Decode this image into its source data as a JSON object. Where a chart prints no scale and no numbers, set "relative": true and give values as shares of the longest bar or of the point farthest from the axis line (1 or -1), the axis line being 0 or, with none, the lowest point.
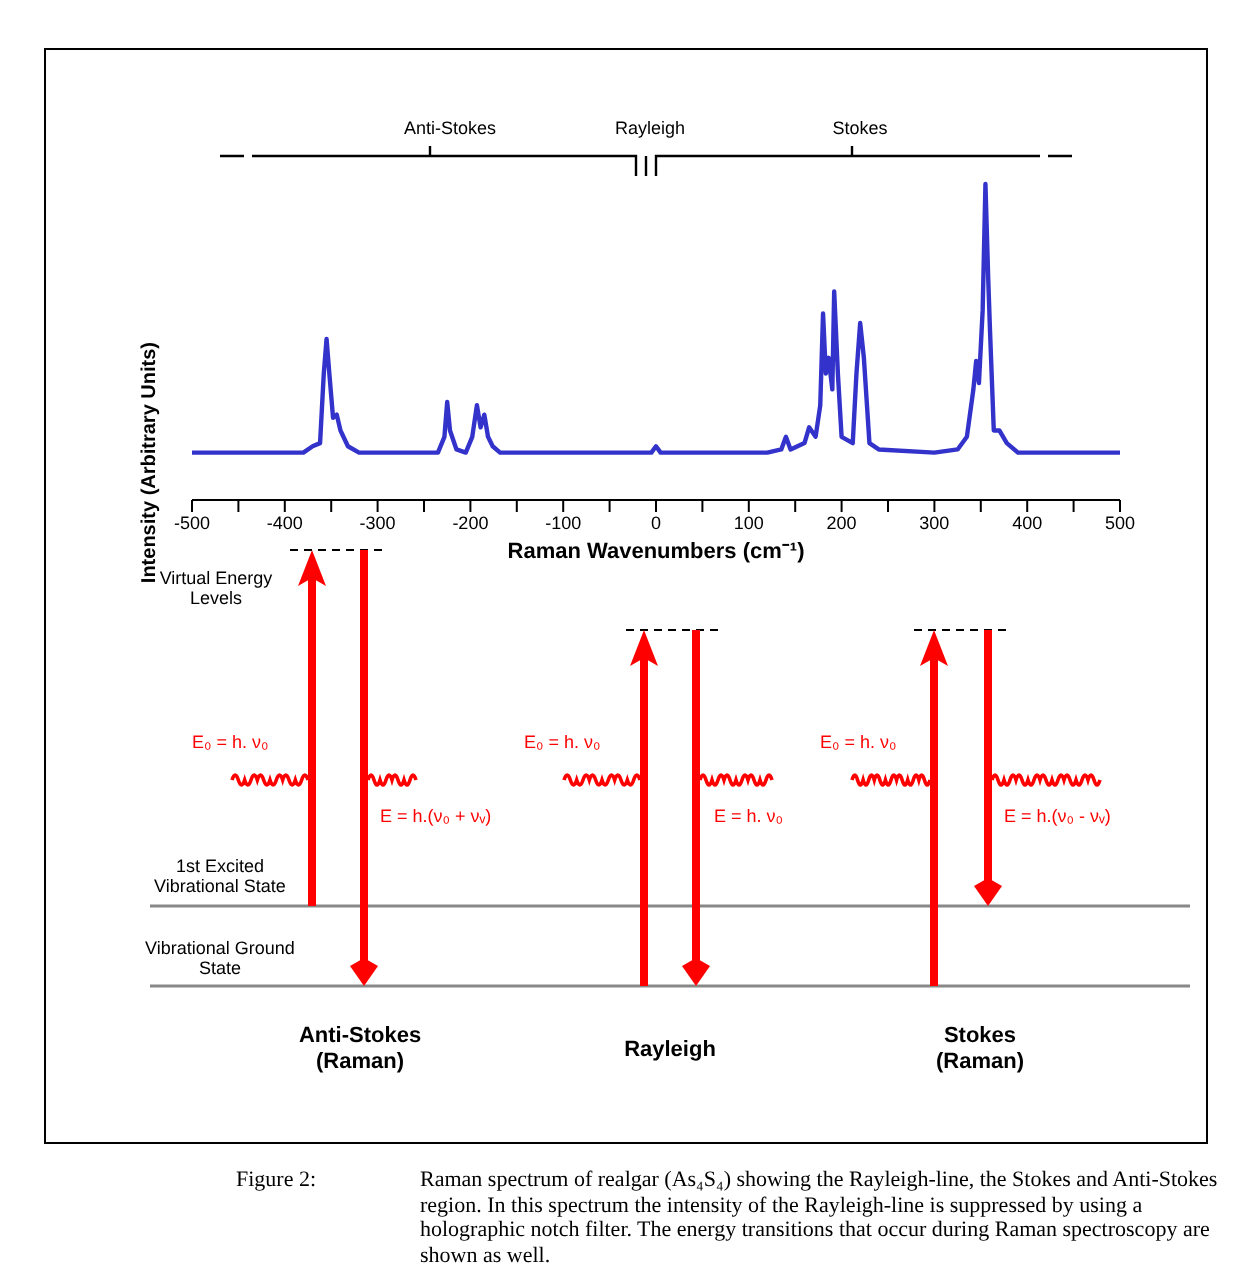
{
  "chart_data": {
    "type": "line",
    "relative": true,
    "xlabel": "Raman Wavenumbers (cm⁻¹)",
    "ylabel": "Intensity (Arbitrary Units)",
    "xlim": [
      -500,
      500
    ],
    "xticks": [
      -500,
      {
        "value": -450,
        "label": null
      },
      -400,
      {
        "value": -350,
        "label": null
      },
      -300,
      {
        "value": -250,
        "label": null
      },
      -200,
      {
        "value": -150,
        "label": null
      },
      -100,
      {
        "value": -50,
        "label": null
      },
      0,
      {
        "value": 50,
        "label": null
      },
      100,
      {
        "value": 150,
        "label": null
      },
      200,
      {
        "value": 250,
        "label": null
      },
      300,
      {
        "value": 350,
        "label": null
      },
      400,
      {
        "value": 450,
        "label": null
      },
      500
    ],
    "x": [
      -500,
      -380,
      -370,
      -362,
      -358,
      -355,
      -352,
      -348,
      -344,
      -340,
      -332,
      -320,
      -235,
      -228,
      -225,
      -222,
      -215,
      -205,
      -198,
      -193,
      -189,
      -185,
      -181,
      -176,
      -168,
      -5,
      0,
      5,
      120,
      135,
      140,
      145,
      160,
      165,
      172,
      177,
      180,
      183,
      186,
      190,
      192,
      196,
      200,
      212,
      216,
      220,
      224,
      230,
      240,
      300,
      325,
      335,
      342,
      345,
      348,
      352,
      355,
      358,
      360,
      364,
      370,
      378,
      390,
      500
    ],
    "series": [
      {
        "color": "#3333cc",
        "values": [
          0.15,
          0.15,
          0.17,
          0.18,
          0.4,
          0.51,
          0.4,
          0.26,
          0.27,
          0.22,
          0.17,
          0.15,
          0.15,
          0.2,
          0.31,
          0.22,
          0.16,
          0.15,
          0.2,
          0.3,
          0.23,
          0.27,
          0.2,
          0.17,
          0.15,
          0.15,
          0.17,
          0.15,
          0.15,
          0.16,
          0.2,
          0.16,
          0.18,
          0.23,
          0.2,
          0.3,
          0.59,
          0.4,
          0.45,
          0.35,
          0.66,
          0.4,
          0.2,
          0.18,
          0.4,
          0.56,
          0.45,
          0.18,
          0.16,
          0.15,
          0.16,
          0.2,
          0.35,
          0.44,
          0.37,
          0.6,
          1.0,
          0.7,
          0.53,
          0.22,
          0.22,
          0.18,
          0.15,
          0.15
        ]
      }
    ],
    "annotations": [
      "Anti-Stokes",
      "Rayleigh",
      "Stokes",
      "Virtual Energy Levels",
      "1st Excited Vibrational State",
      "Vibrational Ground State",
      "E₀ = h. ν₀",
      "E₀ = h. ν₀",
      "E₀ = h. ν₀",
      "E = h.(ν₀ + νᵥ)",
      "E = h. ν₀",
      "E = h.(ν₀ - νᵥ)",
      "Anti-Stokes (Raman)",
      "Rayleigh",
      "Stokes (Raman)",
      "Figure 2:",
      "Raman spectrum of realgar (As₄S₄) showing the Rayleigh-line, the Stokes and Anti-Stokes region. In this spectrum the intensity of the Rayleigh-line is suppressed by using a holographic notch filter. The energy transitions that occur during Raman spectroscopy are shown as well."
    ]
  }
}
